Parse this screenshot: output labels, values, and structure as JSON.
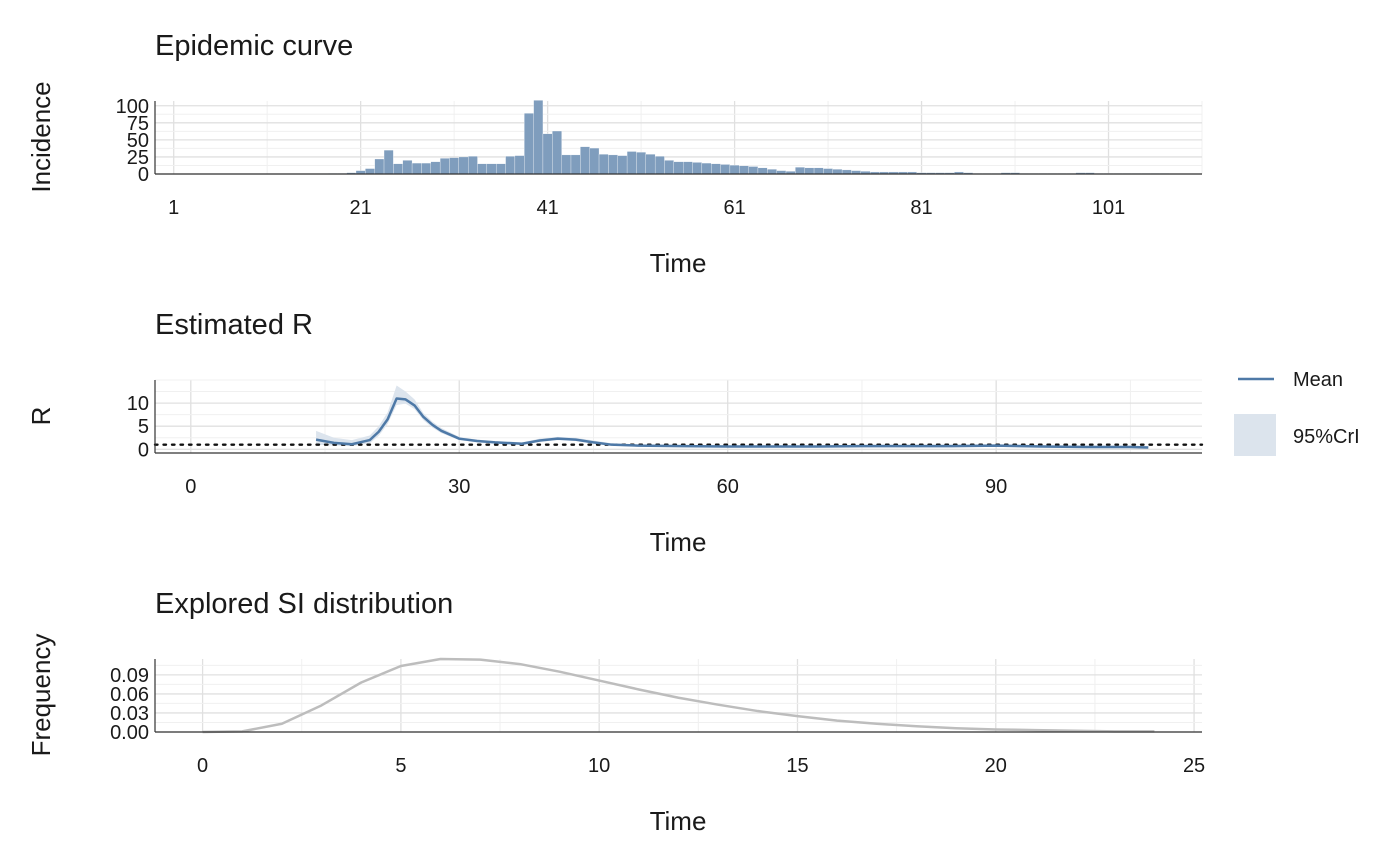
{
  "chart_data": [
    {
      "type": "bar",
      "title": "Epidemic curve",
      "xlabel": "Time",
      "ylabel": "Incidence",
      "xlim": [
        -1,
        111
      ],
      "ylim": [
        0,
        107
      ],
      "xticks": [
        1,
        21,
        41,
        61,
        81,
        101
      ],
      "yticks": [
        0,
        25,
        50,
        75,
        100
      ],
      "grid": true,
      "color": "#7f9dbd",
      "x": [
        14,
        15,
        16,
        17,
        18,
        19,
        20,
        21,
        22,
        23,
        24,
        25,
        26,
        27,
        28,
        29,
        30,
        31,
        32,
        33,
        34,
        35,
        36,
        37,
        38,
        39,
        40,
        41,
        42,
        43,
        44,
        45,
        46,
        47,
        48,
        49,
        50,
        51,
        52,
        53,
        54,
        55,
        56,
        57,
        58,
        59,
        60,
        61,
        62,
        63,
        64,
        65,
        66,
        67,
        68,
        69,
        70,
        71,
        72,
        73,
        74,
        75,
        76,
        77,
        78,
        79,
        80,
        81,
        82,
        83,
        84,
        85,
        86,
        87,
        88,
        89,
        90,
        91,
        92,
        93,
        94,
        95,
        96,
        97,
        98,
        99,
        100,
        101,
        102,
        103,
        104,
        105,
        106,
        107,
        108,
        109,
        110
      ],
      "values": [
        0,
        0,
        0,
        0,
        1,
        1,
        2,
        5,
        8,
        22,
        35,
        15,
        20,
        16,
        16,
        18,
        23,
        24,
        25,
        26,
        15,
        15,
        15,
        26,
        27,
        89,
        108,
        59,
        63,
        28,
        28,
        40,
        38,
        29,
        28,
        27,
        33,
        32,
        29,
        26,
        20,
        18,
        18,
        17,
        16,
        15,
        14,
        13,
        12,
        11,
        9,
        7,
        5,
        4,
        10,
        9,
        9,
        8,
        7,
        6,
        5,
        4,
        3,
        3,
        3,
        3,
        3,
        2,
        2,
        2,
        2,
        3,
        2,
        1,
        1,
        1,
        2,
        2,
        1,
        1,
        1,
        1,
        1,
        1,
        2,
        2,
        1,
        1,
        1,
        1,
        1,
        1,
        1,
        1,
        0,
        0,
        0
      ]
    },
    {
      "type": "line",
      "title": "Estimated R",
      "xlabel": "Time",
      "ylabel": "R",
      "xlim": [
        -4,
        113
      ],
      "ylim": [
        -0.8,
        15
      ],
      "xticks": [
        0,
        30,
        60,
        90
      ],
      "yticks": [
        0,
        5,
        10
      ],
      "grid": true,
      "reference_line": 1,
      "legend": [
        "Mean",
        "95%CrI"
      ],
      "legend_position": "right",
      "colors": {
        "mean": "#4e79a7",
        "interval": "#dce4ed"
      },
      "x": [
        14,
        16,
        18,
        20,
        21,
        22,
        23,
        24,
        25,
        26,
        27,
        28,
        30,
        32,
        34,
        36,
        37,
        39,
        41,
        43,
        45,
        47,
        50,
        55,
        60,
        65,
        70,
        75,
        80,
        85,
        90,
        95,
        100,
        105,
        107
      ],
      "mean": [
        2.1,
        1.4,
        1.1,
        2.0,
        3.8,
        6.5,
        11.0,
        10.8,
        9.5,
        7.0,
        5.3,
        4.0,
        2.3,
        1.8,
        1.5,
        1.3,
        1.2,
        1.9,
        2.3,
        2.1,
        1.5,
        1.0,
        0.8,
        0.7,
        0.6,
        0.6,
        0.6,
        0.7,
        0.7,
        0.7,
        0.8,
        0.6,
        0.5,
        0.5,
        0.4
      ],
      "lower": [
        1.0,
        0.8,
        0.7,
        1.3,
        2.9,
        5.5,
        9.6,
        9.9,
        8.7,
        6.3,
        4.7,
        3.5,
        2.0,
        1.5,
        1.3,
        1.1,
        1.0,
        1.6,
        2.0,
        1.8,
        1.2,
        0.8,
        0.6,
        0.5,
        0.4,
        0.4,
        0.4,
        0.5,
        0.5,
        0.5,
        0.5,
        0.4,
        0.3,
        0.3,
        0.2
      ],
      "upper": [
        4.0,
        2.5,
        2.0,
        3.0,
        5.0,
        8.0,
        13.8,
        12.5,
        10.8,
        7.8,
        6.0,
        4.6,
        2.7,
        2.1,
        1.8,
        1.6,
        1.5,
        2.3,
        2.7,
        2.5,
        1.9,
        1.3,
        1.0,
        0.9,
        0.8,
        0.8,
        0.8,
        1.0,
        1.0,
        1.0,
        1.1,
        0.9,
        0.8,
        0.8,
        0.7
      ]
    },
    {
      "type": "line",
      "title": "Explored SI distribution",
      "xlabel": "Time",
      "ylabel": "Frequency",
      "xlim": [
        -1.2,
        25.2
      ],
      "ylim": [
        0,
        0.115
      ],
      "xticks": [
        0,
        5,
        10,
        15,
        20,
        25
      ],
      "yticks": [
        0.0,
        0.03,
        0.06,
        0.09
      ],
      "ytick_labels": [
        "0.00",
        "0.03",
        "0.06",
        "0.09"
      ],
      "grid": true,
      "color": "#bdbdbd",
      "x": [
        0,
        1,
        2,
        3,
        4,
        5,
        6,
        7,
        8,
        9,
        10,
        11,
        12,
        13,
        14,
        15,
        16,
        17,
        18,
        19,
        20,
        21,
        22,
        23,
        24
      ],
      "values": [
        0,
        0.001,
        0.013,
        0.042,
        0.078,
        0.104,
        0.115,
        0.114,
        0.107,
        0.095,
        0.081,
        0.067,
        0.054,
        0.043,
        0.033,
        0.025,
        0.018,
        0.013,
        0.009,
        0.006,
        0.004,
        0.003,
        0.002,
        0.001,
        0.001
      ]
    }
  ]
}
